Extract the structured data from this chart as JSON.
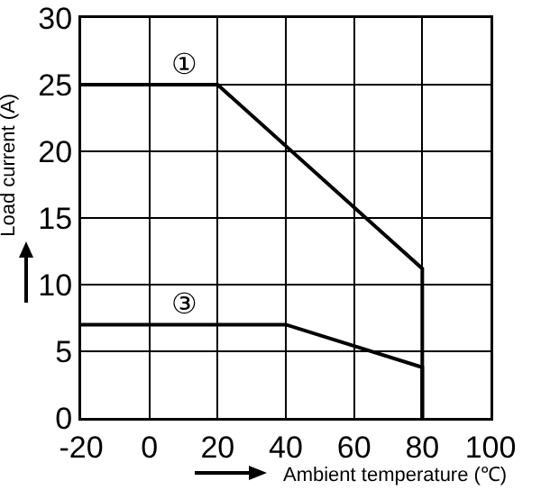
{
  "chart_data": {
    "type": "line",
    "xlabel": "Ambient temperature (℃)",
    "ylabel": "Load current (A)",
    "series": [
      {
        "name": "①",
        "color": "#000000",
        "x": [
          -20,
          20,
          80,
          80
        ],
        "values": [
          25,
          25,
          11.2,
          0
        ]
      },
      {
        "name": "③",
        "color": "#000000",
        "x": [
          -20,
          40,
          80,
          80
        ],
        "values": [
          7,
          7,
          3.8,
          0
        ]
      }
    ],
    "xlim": [
      -20,
      100
    ],
    "xticks": [
      -20,
      0,
      20,
      40,
      60,
      80,
      100
    ],
    "ylim": [
      0,
      30
    ],
    "yticks": [
      0,
      5,
      10,
      15,
      20,
      25,
      30
    ],
    "grid": true,
    "marker": "none",
    "line_style": "solid"
  }
}
